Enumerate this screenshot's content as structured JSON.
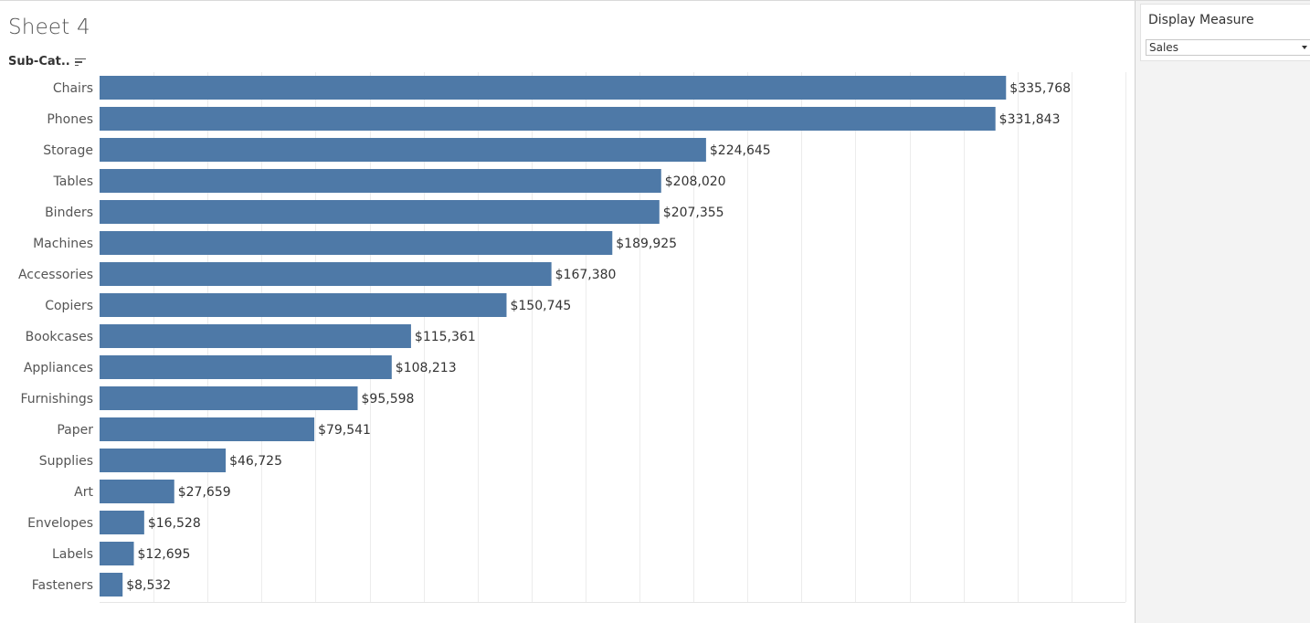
{
  "sheet": {
    "title": "Sheet 4",
    "dimension_header": "Sub-Cat.."
  },
  "parameter": {
    "title": "Display Measure",
    "selected": "Sales"
  },
  "colors": {
    "bar": "#4e79a7",
    "gridline": "#ececec",
    "label": "#555555",
    "value_label": "#333333"
  },
  "icons": {
    "sort": "sort-descending-icon",
    "dropdown": "chevron-down-icon"
  },
  "chart_data": {
    "type": "bar",
    "orientation": "horizontal",
    "categories": [
      "Chairs",
      "Phones",
      "Storage",
      "Tables",
      "Binders",
      "Machines",
      "Accessories",
      "Copiers",
      "Bookcases",
      "Appliances",
      "Furnishings",
      "Paper",
      "Supplies",
      "Art",
      "Envelopes",
      "Labels",
      "Fasteners"
    ],
    "values": [
      335768,
      331843,
      224645,
      208020,
      207355,
      189925,
      167380,
      150745,
      115361,
      108213,
      95598,
      79541,
      46725,
      27659,
      16528,
      12695,
      8532
    ],
    "value_labels": [
      "$335,768",
      "$331,843",
      "$224,645",
      "$208,020",
      "$207,355",
      "$189,925",
      "$167,380",
      "$150,745",
      "$115,361",
      "$108,213",
      "$95,598",
      "$79,541",
      "$46,725",
      "$27,659",
      "$16,528",
      "$12,695",
      "$8,532"
    ],
    "title": "Sheet 4",
    "xlabel": "",
    "ylabel": "Sub-Cat..",
    "xlim": [
      0,
      380000
    ],
    "grid": true,
    "legend": "none"
  }
}
